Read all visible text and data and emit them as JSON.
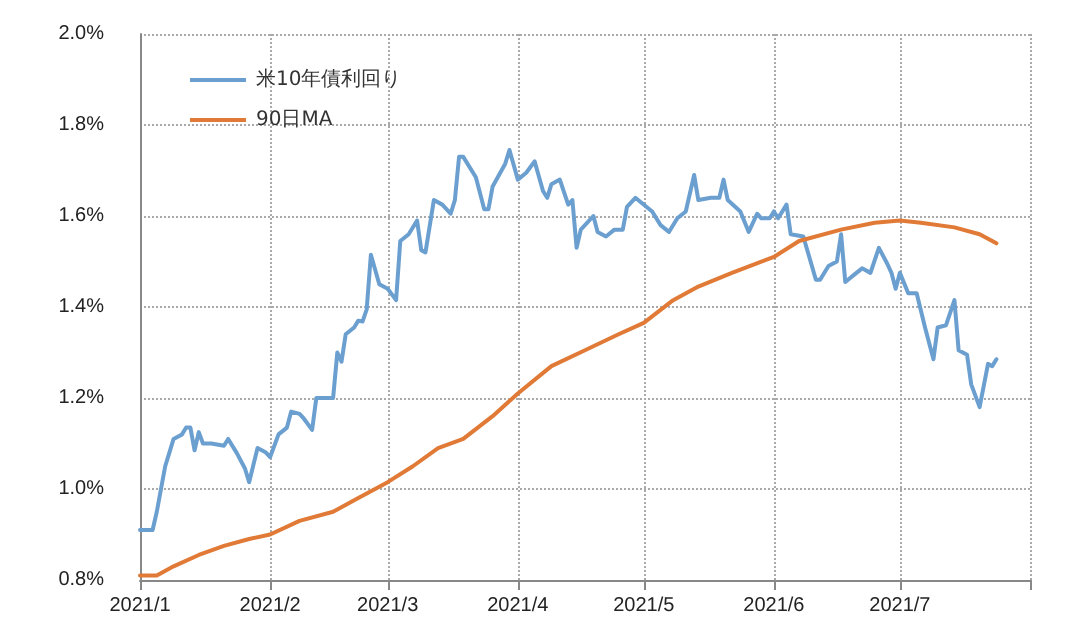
{
  "chart_data": {
    "type": "line",
    "x": [
      "2021-01-01",
      "2021-01-04",
      "2021-01-05",
      "2021-01-07",
      "2021-01-08",
      "2021-01-09",
      "2021-01-11",
      "2021-01-12",
      "2021-01-13",
      "2021-01-14",
      "2021-01-15",
      "2021-01-16",
      "2021-01-18",
      "2021-01-21",
      "2021-01-22",
      "2021-01-24",
      "2021-01-26",
      "2021-01-27",
      "2021-01-29",
      "2021-01-31",
      "2021-02-01",
      "2021-02-03",
      "2021-02-05",
      "2021-02-06",
      "2021-02-08",
      "2021-02-09",
      "2021-02-11",
      "2021-02-12",
      "2021-02-14",
      "2021-02-16",
      "2021-02-17",
      "2021-02-18",
      "2021-02-19",
      "2021-02-21",
      "2021-02-22",
      "2021-02-23",
      "2021-02-24",
      "2021-02-25",
      "2021-02-27",
      "2021-02-28",
      "2021-03-01",
      "2021-03-03",
      "2021-03-04",
      "2021-03-06",
      "2021-03-08",
      "2021-03-09",
      "2021-03-10",
      "2021-03-12",
      "2021-03-14",
      "2021-03-16",
      "2021-03-17",
      "2021-03-18",
      "2021-03-19",
      "2021-03-22",
      "2021-03-24",
      "2021-03-25",
      "2021-03-26",
      "2021-03-29",
      "2021-03-30",
      "2021-04-01",
      "2021-04-03",
      "2021-04-05",
      "2021-04-07",
      "2021-04-08",
      "2021-04-09",
      "2021-04-11",
      "2021-04-13",
      "2021-04-14",
      "2021-04-15",
      "2021-04-16",
      "2021-04-19",
      "2021-04-20",
      "2021-04-22",
      "2021-04-24",
      "2021-04-26",
      "2021-04-27",
      "2021-04-29",
      "2021-05-03",
      "2021-05-05",
      "2021-05-07",
      "2021-05-09",
      "2021-05-11",
      "2021-05-13",
      "2021-05-14",
      "2021-05-17",
      "2021-05-19",
      "2021-05-20",
      "2021-05-21",
      "2021-05-24",
      "2021-05-26",
      "2021-05-28",
      "2021-05-29",
      "2021-05-31",
      "2021-06-01",
      "2021-06-02",
      "2021-06-04",
      "2021-06-05",
      "2021-06-08",
      "2021-06-11",
      "2021-06-12",
      "2021-06-14",
      "2021-06-16",
      "2021-06-17",
      "2021-06-18",
      "2021-06-20",
      "2021-06-22",
      "2021-06-24",
      "2021-06-26",
      "2021-06-28",
      "2021-06-29",
      "2021-06-30",
      "2021-07-01",
      "2021-07-03",
      "2021-07-05",
      "2021-07-07",
      "2021-07-09",
      "2021-07-10",
      "2021-07-12",
      "2021-07-14",
      "2021-07-15",
      "2021-07-17",
      "2021-07-18",
      "2021-07-20",
      "2021-07-22",
      "2021-07-23",
      "2021-07-24"
    ],
    "series": [
      {
        "name": "米10年債利回り",
        "color": "#6a9fd0",
        "values": [
          0.91,
          0.91,
          0.95,
          1.05,
          1.08,
          1.11,
          1.12,
          1.135,
          1.135,
          1.085,
          1.125,
          1.1,
          1.1,
          1.095,
          1.11,
          1.08,
          1.045,
          1.015,
          1.09,
          1.08,
          1.07,
          1.12,
          1.135,
          1.17,
          1.165,
          1.155,
          1.13,
          1.2,
          1.2,
          1.2,
          1.3,
          1.28,
          1.34,
          1.355,
          1.37,
          1.368,
          1.395,
          1.515,
          1.45,
          1.445,
          1.44,
          1.415,
          1.545,
          1.56,
          1.59,
          1.525,
          1.52,
          1.635,
          1.625,
          1.605,
          1.635,
          1.73,
          1.73,
          1.685,
          1.615,
          1.615,
          1.665,
          1.715,
          1.745,
          1.68,
          1.695,
          1.72,
          1.655,
          1.64,
          1.67,
          1.68,
          1.625,
          1.635,
          1.53,
          1.57,
          1.6,
          1.565,
          1.555,
          1.57,
          1.57,
          1.62,
          1.64,
          1.61,
          1.58,
          1.565,
          1.595,
          1.61,
          1.69,
          1.635,
          1.64,
          1.64,
          1.68,
          1.635,
          1.61,
          1.565,
          1.605,
          1.595,
          1.595,
          1.61,
          1.595,
          1.625,
          1.56,
          1.555,
          1.46,
          1.46,
          1.49,
          1.5,
          1.56,
          1.455,
          1.47,
          1.485,
          1.475,
          1.53,
          1.495,
          1.475,
          1.44,
          1.475,
          1.43,
          1.43,
          1.355,
          1.285,
          1.355,
          1.36,
          1.415,
          1.305,
          1.295,
          1.23,
          1.18,
          1.275,
          1.27,
          1.285
        ]
      },
      {
        "name": "90日MA",
        "color": "#e07a36",
        "x": [
          "2021-01-01",
          "2021-01-05",
          "2021-01-09",
          "2021-01-15",
          "2021-01-21",
          "2021-01-27",
          "2021-02-01",
          "2021-02-08",
          "2021-02-16",
          "2021-02-22",
          "2021-03-01",
          "2021-03-07",
          "2021-03-13",
          "2021-03-19",
          "2021-03-26",
          "2021-04-01",
          "2021-04-09",
          "2021-04-17",
          "2021-04-25",
          "2021-05-01",
          "2021-05-08",
          "2021-05-14",
          "2021-05-22",
          "2021-06-01",
          "2021-06-07",
          "2021-06-17",
          "2021-06-25",
          "2021-07-01",
          "2021-07-06",
          "2021-07-14",
          "2021-07-20",
          "2021-07-24"
        ],
        "values": [
          0.81,
          0.81,
          0.83,
          0.855,
          0.875,
          0.89,
          0.9,
          0.93,
          0.95,
          0.98,
          1.015,
          1.05,
          1.09,
          1.11,
          1.16,
          1.21,
          1.27,
          1.305,
          1.34,
          1.365,
          1.415,
          1.445,
          1.475,
          1.51,
          1.545,
          1.57,
          1.585,
          1.59,
          1.585,
          1.575,
          1.56,
          1.54
        ]
      }
    ],
    "xlim": [
      "2021-01-01",
      "2021-08-01"
    ],
    "xticks": [
      {
        "value": "2021-01-01",
        "label": "2021/1"
      },
      {
        "value": "2021-02-01",
        "label": "2021/2"
      },
      {
        "value": "2021-03-01",
        "label": "2021/3"
      },
      {
        "value": "2021-04-01",
        "label": "2021/4"
      },
      {
        "value": "2021-05-01",
        "label": "2021/5"
      },
      {
        "value": "2021-06-01",
        "label": "2021/6"
      },
      {
        "value": "2021-07-01",
        "label": "2021/7"
      },
      {
        "value": "2021-08-01",
        "label": null
      }
    ],
    "ylim": [
      0.8,
      2.0
    ],
    "yticks": [
      {
        "value": 0.8,
        "label": "0.8%"
      },
      {
        "value": 1.0,
        "label": "1.0%"
      },
      {
        "value": 1.2,
        "label": "1.2%"
      },
      {
        "value": 1.4,
        "label": "1.4%"
      },
      {
        "value": 1.6,
        "label": "1.6%"
      },
      {
        "value": 1.8,
        "label": "1.8%"
      },
      {
        "value": 2.0,
        "label": "2.0%"
      }
    ],
    "grid": true,
    "legend": "top left",
    "marker": "none",
    "line_style": "solid"
  }
}
